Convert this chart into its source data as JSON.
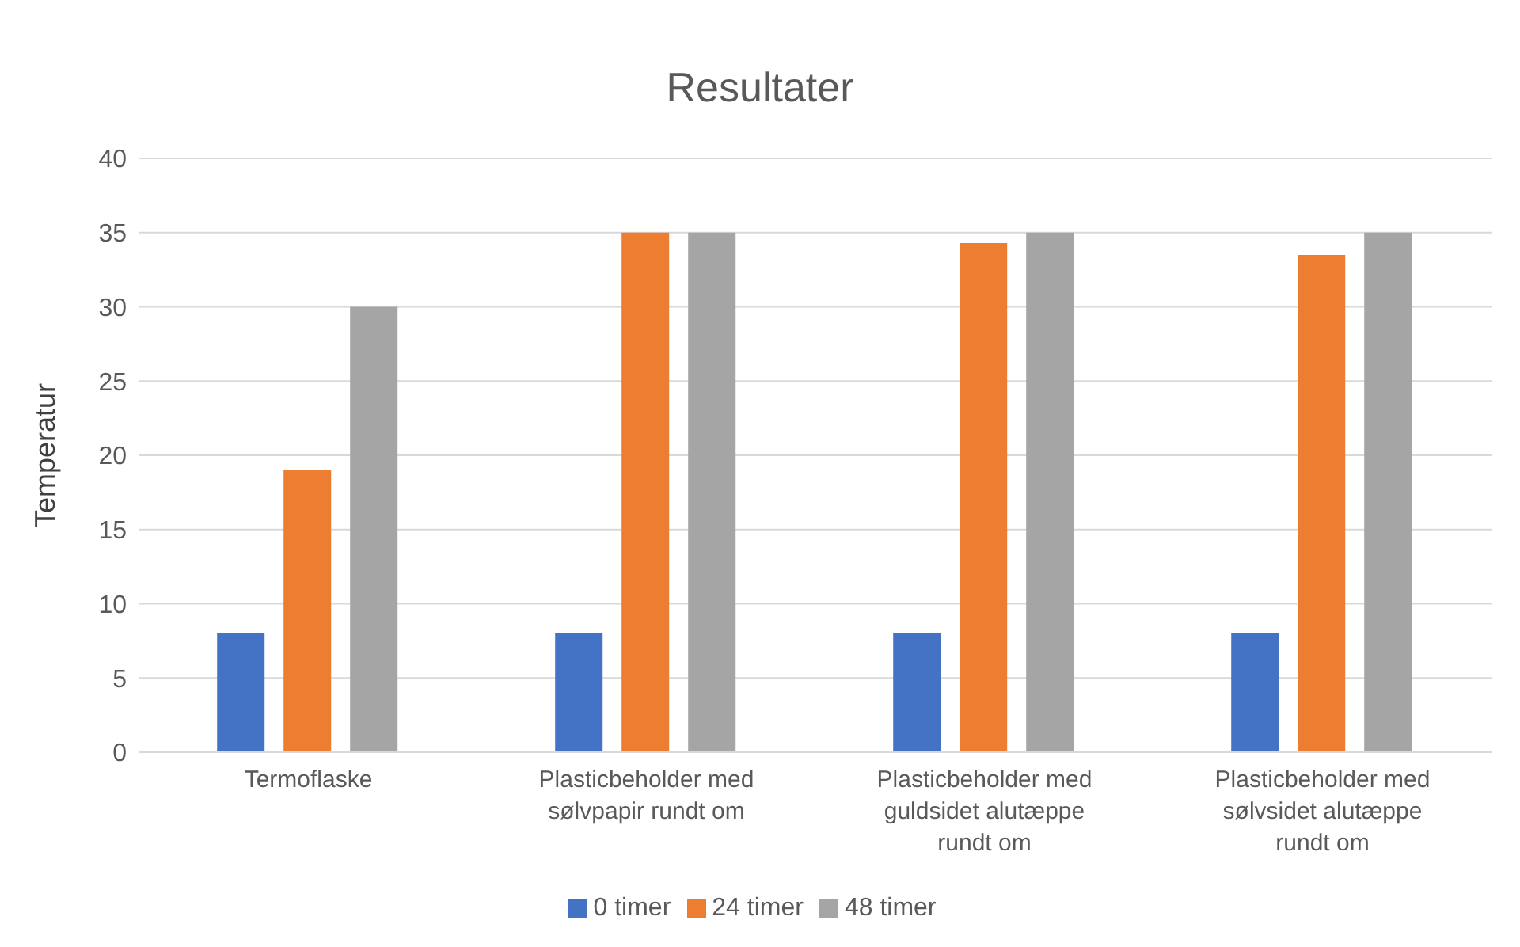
{
  "chart_data": {
    "type": "bar",
    "title": "Resultater",
    "ylabel": "Temperatur",
    "categories": [
      "Termoflaske",
      "Plasticbeholder med sølvpapir rundt om",
      "Plasticbeholder med guldsidet alutæppe rundt om",
      "Plasticbeholder med sølvsidet alutæppe rundt om"
    ],
    "series": [
      {
        "name": "0 timer",
        "color": "#4472c4",
        "values": [
          8,
          8,
          8,
          8
        ]
      },
      {
        "name": "24 timer",
        "color": "#ed7d31",
        "values": [
          19,
          35,
          34.3,
          33.5
        ]
      },
      {
        "name": "48 timer",
        "color": "#a5a5a5",
        "values": [
          30,
          35,
          35,
          35
        ]
      }
    ],
    "ylim": [
      0,
      40
    ],
    "yticks": [
      0,
      5,
      10,
      15,
      20,
      25,
      30,
      35,
      40
    ],
    "grid": "y",
    "legend": "bottom"
  }
}
